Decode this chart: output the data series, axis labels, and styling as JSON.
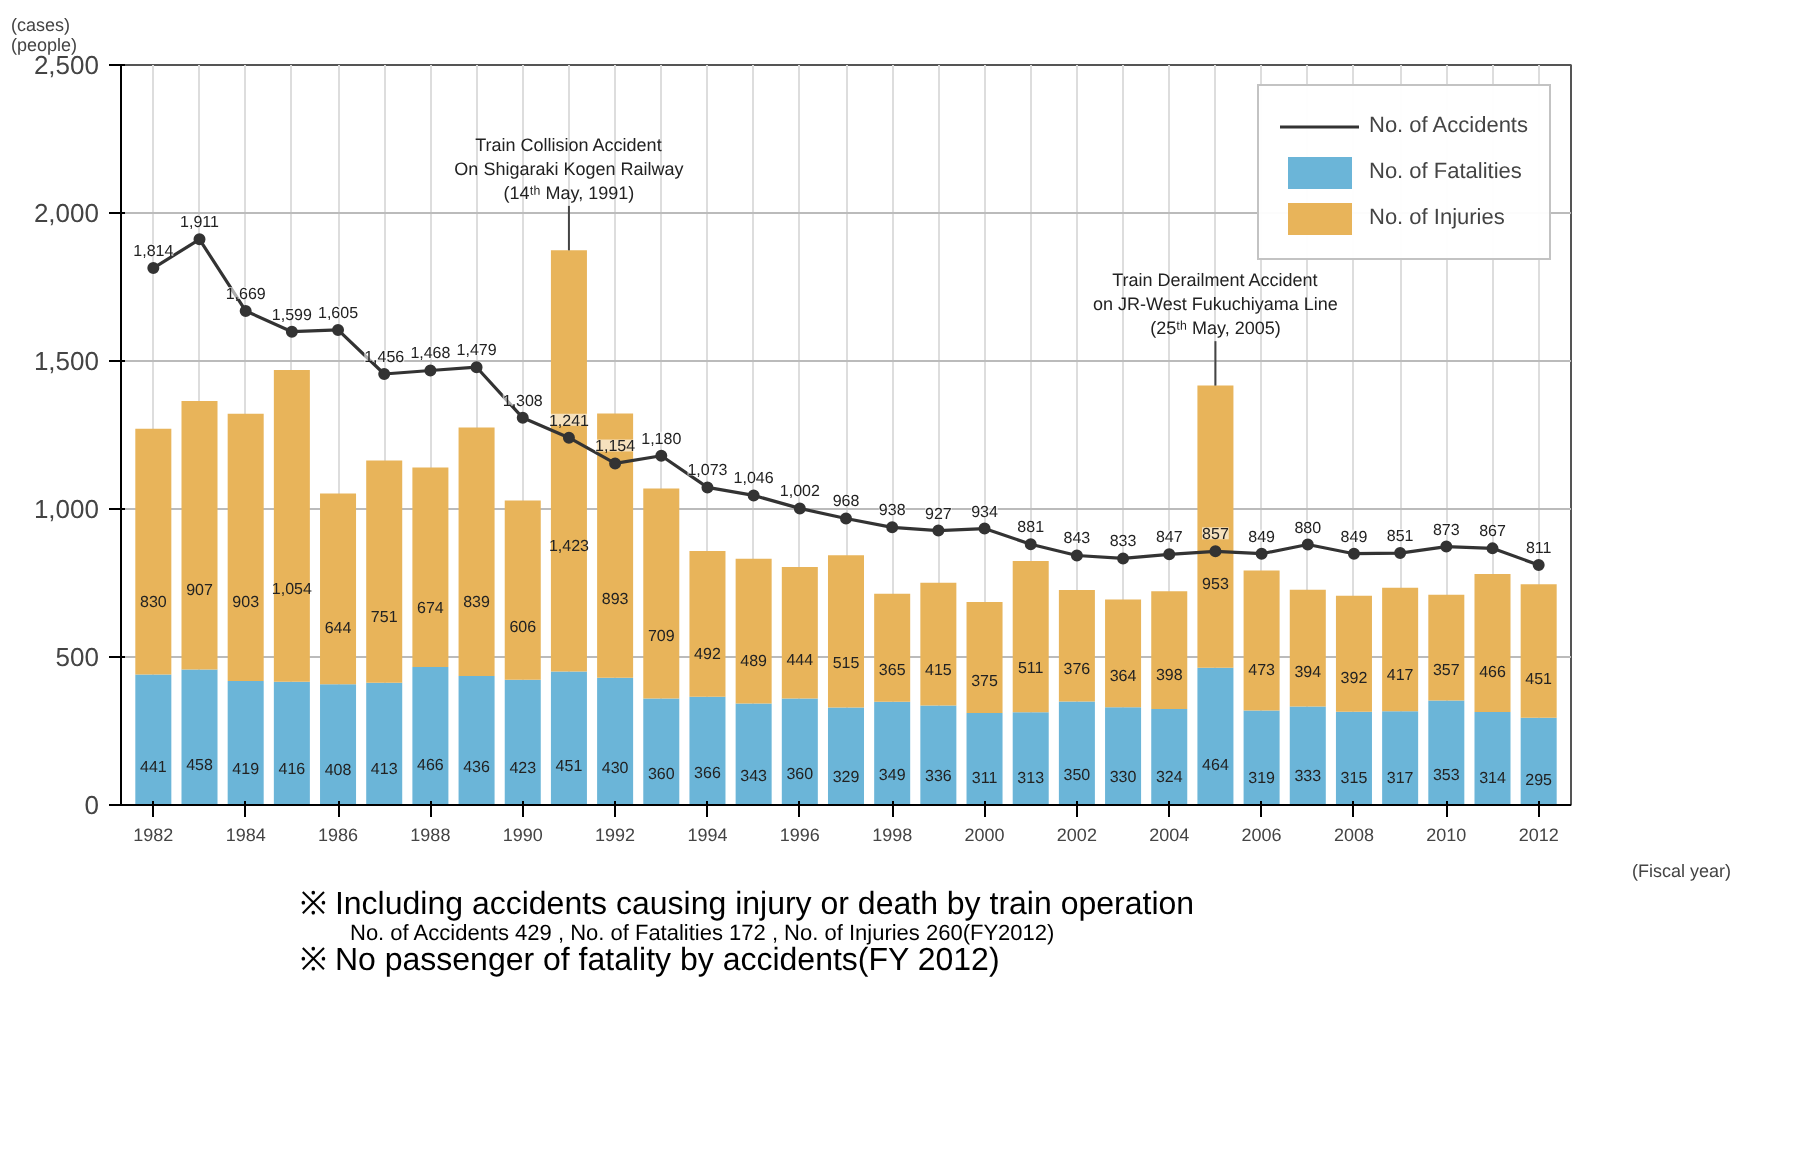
{
  "chart_data": {
    "type": "bar",
    "stacked": true,
    "x": [
      1982,
      1983,
      1984,
      1985,
      1986,
      1987,
      1988,
      1989,
      1990,
      1991,
      1992,
      1993,
      1994,
      1995,
      1996,
      1997,
      1998,
      1999,
      2000,
      2001,
      2002,
      2003,
      2004,
      2005,
      2006,
      2007,
      2008,
      2009,
      2010,
      2011,
      2012
    ],
    "series": [
      {
        "name": "No. of Fatalities",
        "color": "#6bb5d8",
        "values": [
          441,
          458,
          419,
          416,
          408,
          413,
          466,
          436,
          423,
          451,
          430,
          360,
          366,
          343,
          360,
          329,
          349,
          336,
          311,
          313,
          350,
          330,
          324,
          464,
          319,
          333,
          315,
          317,
          353,
          314,
          295
        ],
        "value_labels": [
          "441",
          "458",
          "419",
          "416",
          "408",
          "413",
          "466",
          "436",
          "423",
          "451",
          "430",
          "360",
          "366",
          "343",
          "360",
          "329",
          "349",
          "336",
          "311",
          "313",
          "350",
          "330",
          "324",
          "464",
          "319",
          "333",
          "315",
          "317",
          "353",
          "314",
          "295"
        ]
      },
      {
        "name": "No. of Injuries",
        "color": "#e8b45a",
        "values": [
          830,
          907,
          903,
          1054,
          644,
          751,
          674,
          839,
          606,
          1423,
          893,
          709,
          492,
          489,
          444,
          515,
          365,
          415,
          375,
          511,
          376,
          364,
          398,
          953,
          473,
          394,
          392,
          417,
          357,
          466,
          451
        ],
        "value_labels": [
          "830",
          "907",
          "903",
          "1,054",
          "644",
          "751",
          "674",
          "839",
          "606",
          "1,423",
          "893",
          "709",
          "492",
          "489",
          "444",
          "515",
          "365",
          "415",
          "375",
          "511",
          "376",
          "364",
          "398",
          "953",
          "473",
          "394",
          "392",
          "417",
          "357",
          "466",
          "451"
        ]
      },
      {
        "name": "No. of Accidents",
        "type": "line",
        "color": "#333333",
        "marker": "circle",
        "values": [
          1814,
          1911,
          1669,
          1599,
          1605,
          1456,
          1468,
          1479,
          1308,
          1241,
          1154,
          1180,
          1073,
          1046,
          1002,
          968,
          938,
          927,
          934,
          881,
          843,
          833,
          847,
          857,
          849,
          880,
          849,
          851,
          873,
          867,
          811
        ],
        "value_labels": [
          "1,814",
          "1,911",
          "1,669",
          "1,599",
          "1,605",
          "1,456",
          "1,468",
          "1,479",
          "1,308",
          "1,241",
          "1,154",
          "1,180",
          "1,073",
          "1,046",
          "1,002",
          "968",
          "938",
          "927",
          "934",
          "881",
          "843",
          "833",
          "847",
          "857",
          "849",
          "880",
          "849",
          "851",
          "873",
          "867",
          "811"
        ]
      }
    ],
    "ylabel": "(cases)\n(people)",
    "xlabel": "(Fiscal year)",
    "xlim": [
      1981.3,
      2012.7
    ],
    "xticks": [
      1982,
      1984,
      1986,
      1988,
      1990,
      1992,
      1994,
      1996,
      1998,
      2000,
      2002,
      2004,
      2006,
      2008,
      2010,
      2012
    ],
    "ylim": [
      0,
      2500
    ],
    "yticks": [
      0,
      500,
      {
        "value": 1000,
        "label": "1,000"
      },
      {
        "value": 1500,
        "label": "1,500"
      },
      {
        "value": 2000,
        "label": "2,000"
      },
      {
        "value": 2500,
        "label": "2,500"
      }
    ],
    "grid": true,
    "legend": "top right",
    "annotations": [
      {
        "text": "Train Collision Accident\nOn Shigaraki Kogen Railway\n(14ᵗʰ May, 1991)",
        "x": 1991,
        "y": 1874
      },
      {
        "text": "Train Derailment Accident\non JR-West Fukuchiyama Line\n(25ᵗʰ May, 2005)",
        "x": 2005,
        "y": 1417
      },
      "※ Including accidents causing injury or death by train operation",
      "No. of Accidents 429 , No. of Fatalities 172 , No. of Injuries 260(FY2012)",
      "※ No passenger of fatality by accidents(FY 2012)"
    ]
  }
}
